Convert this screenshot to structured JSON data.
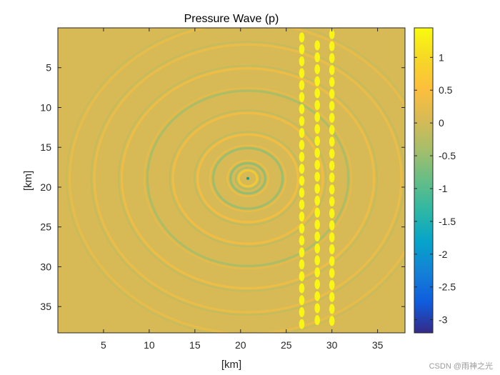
{
  "chart_data": {
    "type": "heatmap",
    "title": "Pressure Wave (p)",
    "xlabel": "[km]",
    "ylabel": "[km]",
    "xlim": [
      0,
      38
    ],
    "ylim": [
      38.3,
      0
    ],
    "x_ticks": [
      5,
      10,
      15,
      20,
      25,
      30,
      35
    ],
    "x_tick_labels": [
      "5",
      "10",
      "15",
      "20",
      "25",
      "30",
      "35"
    ],
    "y_ticks": [
      5,
      10,
      15,
      20,
      25,
      30,
      35
    ],
    "y_tick_labels": [
      "5",
      "10",
      "15",
      "20",
      "25",
      "30",
      "35"
    ],
    "colorbar": {
      "colormap": "parula",
      "range": [
        -3.2,
        1.45
      ],
      "ticks": [
        1,
        0.5,
        0,
        -0.5,
        -1,
        -1.5,
        -2,
        -2.5,
        -3
      ],
      "tick_labels": [
        "1",
        "0.5",
        "0",
        "-0.5",
        "-1",
        "-1.5",
        "-2",
        "-2.5",
        "-3"
      ]
    },
    "source": {
      "x_km": 20.8,
      "y_km": 18.9
    },
    "wavefront_radii_km": [
      1.0,
      1.9,
      3.8,
      5.5,
      8.2,
      11.0,
      13.8,
      16.8,
      19.5
    ],
    "wavefront_amplitudes": [
      0.8,
      -0.7,
      -0.6,
      0.5,
      0.45,
      -0.45,
      0.4,
      0.35,
      0.3
    ],
    "scatterer_columns": [
      {
        "x_km": 26.7,
        "y_start_km": 1.2,
        "y_end_km": 37.8,
        "spacing_km": 1.5
      },
      {
        "x_km": 28.4,
        "y_start_km": 2.2,
        "y_end_km": 37.4,
        "spacing_km": 1.5
      },
      {
        "x_km": 30.0,
        "y_start_km": 0.8,
        "y_end_km": 37.2,
        "spacing_km": 1.5
      }
    ],
    "scatterer_value": 1.4,
    "background_value": 0.05
  },
  "watermark": "CSDN @雨神之光",
  "colors": {
    "background": "#8ec24a",
    "scatterer": "#f5e41c",
    "axis": "#262626"
  }
}
